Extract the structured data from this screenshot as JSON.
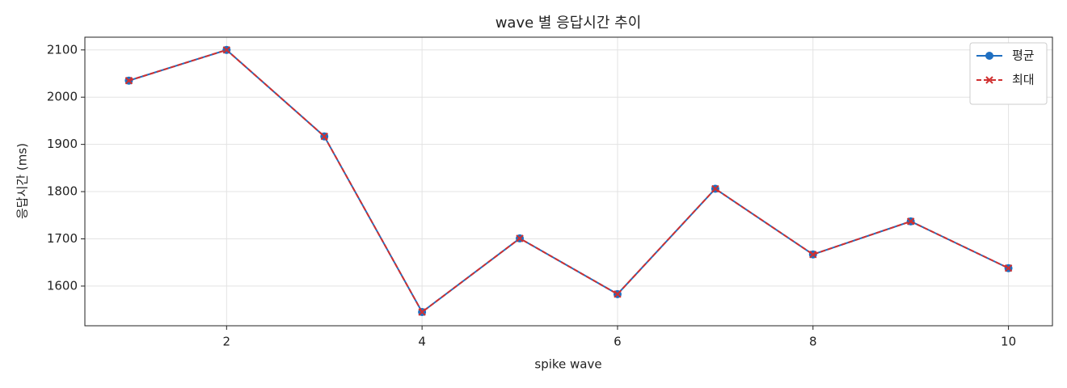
{
  "chart_data": {
    "type": "line",
    "title": "wave 별 응답시간 추이",
    "xlabel": "spike wave",
    "ylabel": "응답시간 (ms)",
    "x": [
      1,
      2,
      3,
      4,
      5,
      6,
      7,
      8,
      9,
      10
    ],
    "series": [
      {
        "name": "평균",
        "color": "#1f6fc1",
        "marker": "o",
        "dash": false,
        "values": [
          2035,
          2100,
          1917,
          1545,
          1701,
          1583,
          1806,
          1667,
          1737,
          1638
        ]
      },
      {
        "name": "최대",
        "color": "#d03030",
        "marker": "x",
        "dash": true,
        "values": [
          2035,
          2100,
          1917,
          1545,
          1701,
          1583,
          1806,
          1667,
          1737,
          1638
        ]
      }
    ],
    "xlim": [
      0.55,
      10.45
    ],
    "ylim": [
      1516,
      2127
    ],
    "xticks": [
      2,
      4,
      6,
      8,
      10
    ],
    "yticks": [
      1600,
      1700,
      1800,
      1900,
      2000,
      2100
    ],
    "grid": true,
    "legend": "upper right"
  }
}
